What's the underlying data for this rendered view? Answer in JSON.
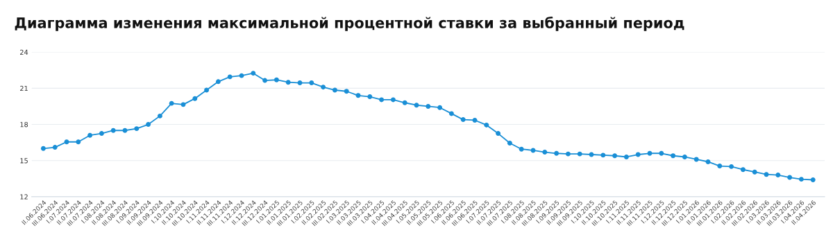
{
  "chart_data": {
    "type": "line",
    "title": "Диаграмма изменения максимальной процентной ставки за выбранный период",
    "categories": [
      "II.06.2024",
      "III.06.2024",
      "I.07.2024",
      "II.07.2024",
      "III.07.2024",
      "I.08.2024",
      "II.08.2024",
      "III.08.2024",
      "I.09.2024",
      "II.09.2024",
      "III.09.2024",
      "I.10.2024",
      "II.10.2024",
      "III.10.2024",
      "I.11.2024",
      "II.11.2024",
      "III.11.2024",
      "I.12.2024",
      "II.12.2024",
      "III.12.2024",
      "I.01.2025",
      "II.01.2025",
      "III.01.2025",
      "I.02.2025",
      "II.02.2025",
      "III.02.2025",
      "I.03.2025",
      "II.03.2025",
      "III.03.2025",
      "I.04.2025",
      "II.04.2025",
      "III.04.2025",
      "I.05.2025",
      "II.05.2025",
      "III.05.2025",
      "I.06.2025",
      "II.06.2025",
      "III.06.2025",
      "I.07.2025",
      "II.07.2025",
      "III.07.2025",
      "I.08.2025",
      "II.08.2025",
      "III.08.2025",
      "I.09.2025",
      "II.09.2025",
      "III.09.2025",
      "I.10.2025",
      "II.10.2025",
      "III.10.2025",
      "I.11.2025",
      "II.11.2025",
      "III.11.2025",
      "I.12.2025",
      "II.12.2025",
      "III.12.2025",
      "I.01.2026",
      "II.01.2026",
      "III.01.2026",
      "I.02.2026",
      "II.02.2026",
      "III.02.2026",
      "I.03.2026",
      "II.03.2026",
      "III.03.2026",
      "I.04.2026",
      "II.04.2026"
    ],
    "series": [
      {
        "color": "#1a8fd6",
        "values": [
          16.0,
          16.1,
          16.55,
          16.55,
          17.1,
          17.25,
          17.5,
          17.5,
          17.65,
          18.0,
          18.7,
          19.75,
          19.65,
          20.15,
          20.85,
          21.55,
          21.95,
          22.05,
          22.25,
          21.65,
          21.7,
          21.5,
          21.45,
          21.45,
          21.1,
          20.85,
          20.75,
          20.4,
          20.3,
          20.05,
          20.05,
          19.8,
          19.6,
          19.5,
          19.4,
          18.9,
          18.4,
          18.35,
          17.95,
          17.25,
          16.45,
          15.95,
          15.85,
          15.7,
          15.6,
          15.55,
          15.55,
          15.5,
          15.45,
          15.4,
          15.3,
          15.5,
          15.6,
          15.6,
          15.4,
          15.3,
          15.1,
          14.9,
          14.55,
          14.5,
          14.25,
          14.05,
          13.85,
          13.8,
          13.6,
          13.45,
          13.4
        ]
      }
    ],
    "ylim": [
      12,
      24
    ],
    "yticks": [
      12,
      15,
      18,
      21,
      24
    ],
    "grid": "y",
    "marker": "circle",
    "line_style": "solid"
  }
}
